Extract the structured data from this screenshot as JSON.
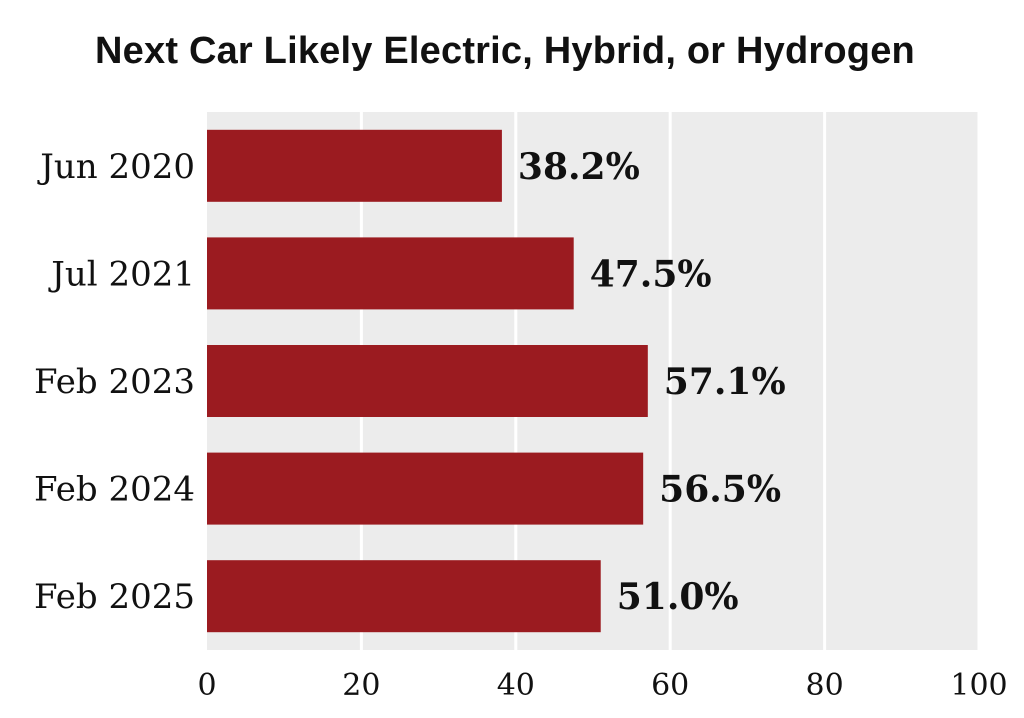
{
  "chart_data": {
    "type": "bar",
    "orientation": "horizontal",
    "title": "Next Car Likely Electric, Hybrid, or Hydrogen",
    "categories": [
      "Jun 2020",
      "Jul 2021",
      "Feb 2023",
      "Feb 2024",
      "Feb 2025"
    ],
    "values": [
      38.2,
      47.5,
      57.1,
      56.5,
      51.0
    ],
    "value_labels": [
      "38.2%",
      "47.5%",
      "57.1%",
      "56.5%",
      "51.0%"
    ],
    "xlabel": "",
    "ylabel": "",
    "xlim": [
      0,
      100
    ],
    "x_ticks": [
      "0",
      "20",
      "40",
      "60",
      "80",
      "100"
    ],
    "grid": true,
    "legend": "none",
    "colors": {
      "bar": "#9b1b20",
      "plot_background": "#ececec",
      "gridline": "#ffffff",
      "text": "#111111"
    }
  }
}
